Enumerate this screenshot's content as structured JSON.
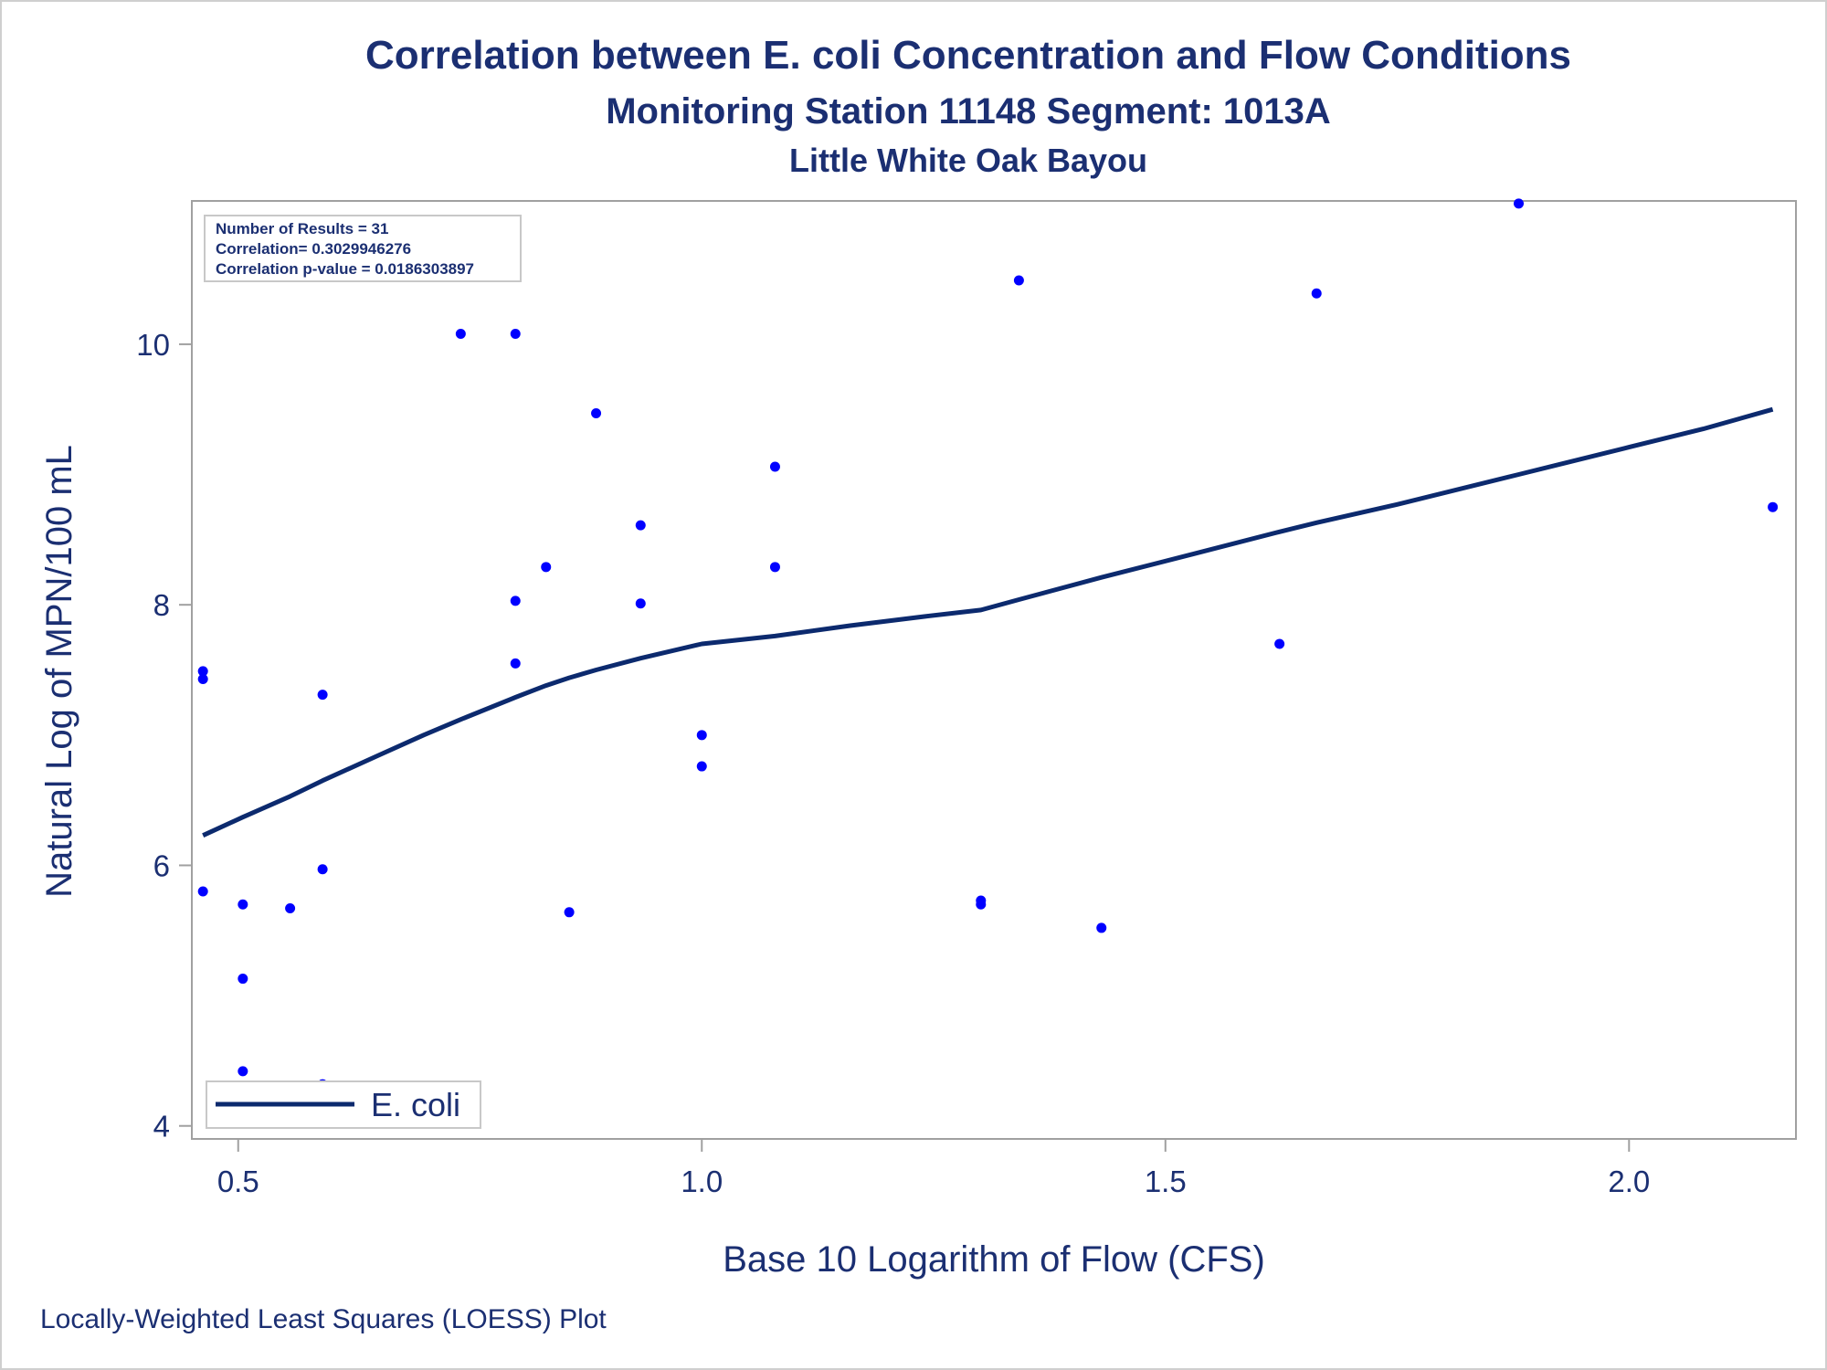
{
  "chart_data": {
    "type": "scatter",
    "title": "Correlation between E. coli Concentration and Flow Conditions",
    "subtitle": "Monitoring Station 11148 Segment: 1013A",
    "subtitle2": "Little White Oak Bayou",
    "xlabel": "Base 10 Logarithm of Flow (CFS)",
    "ylabel": "Natural Log of MPN/100 mL",
    "footnote": "Locally-Weighted Least Squares (LOESS) Plot",
    "xlim": [
      0.45,
      2.18
    ],
    "ylim": [
      3.9,
      11.1
    ],
    "x_ticks": [
      0.5,
      1.0,
      1.5,
      2.0
    ],
    "x_tick_labels": [
      "0.5",
      "1.0",
      "1.5",
      "2.0"
    ],
    "y_ticks": [
      4,
      6,
      8,
      10
    ],
    "y_tick_labels": [
      "4",
      "6",
      "8",
      "10"
    ],
    "grid": false,
    "stats": {
      "results": "Number of Results = 31",
      "correlation": "Correlation= 0.3029946276",
      "pvalue": "Correlation p-value = 0.0186303897"
    },
    "legend": {
      "label": "E. coli",
      "position": "bottom-left",
      "color": "#0c2a6e"
    },
    "point_color": "#0000ff",
    "points": [
      {
        "x": 0.462,
        "y": 7.49
      },
      {
        "x": 0.462,
        "y": 7.43
      },
      {
        "x": 0.462,
        "y": 5.8
      },
      {
        "x": 0.505,
        "y": 5.7
      },
      {
        "x": 0.505,
        "y": 5.13
      },
      {
        "x": 0.505,
        "y": 4.42
      },
      {
        "x": 0.556,
        "y": 5.67
      },
      {
        "x": 0.591,
        "y": 7.31
      },
      {
        "x": 0.591,
        "y": 5.97
      },
      {
        "x": 0.591,
        "y": 4.32
      },
      {
        "x": 0.74,
        "y": 10.08
      },
      {
        "x": 0.799,
        "y": 10.08
      },
      {
        "x": 0.799,
        "y": 8.03
      },
      {
        "x": 0.799,
        "y": 7.55
      },
      {
        "x": 0.832,
        "y": 8.29
      },
      {
        "x": 0.857,
        "y": 5.64
      },
      {
        "x": 0.886,
        "y": 9.47
      },
      {
        "x": 0.934,
        "y": 8.61
      },
      {
        "x": 0.934,
        "y": 8.01
      },
      {
        "x": 1.0,
        "y": 7.0
      },
      {
        "x": 1.0,
        "y": 6.76
      },
      {
        "x": 1.079,
        "y": 9.06
      },
      {
        "x": 1.079,
        "y": 8.29
      },
      {
        "x": 1.301,
        "y": 5.73
      },
      {
        "x": 1.301,
        "y": 5.7
      },
      {
        "x": 1.342,
        "y": 10.49
      },
      {
        "x": 1.431,
        "y": 5.52
      },
      {
        "x": 1.623,
        "y": 7.7
      },
      {
        "x": 1.663,
        "y": 10.39
      },
      {
        "x": 1.881,
        "y": 11.08
      },
      {
        "x": 2.155,
        "y": 8.75
      }
    ],
    "loess_line": [
      {
        "x": 0.462,
        "y": 6.23
      },
      {
        "x": 0.505,
        "y": 6.37
      },
      {
        "x": 0.556,
        "y": 6.53
      },
      {
        "x": 0.591,
        "y": 6.65
      },
      {
        "x": 0.65,
        "y": 6.84
      },
      {
        "x": 0.7,
        "y": 7.0
      },
      {
        "x": 0.74,
        "y": 7.12
      },
      {
        "x": 0.799,
        "y": 7.29
      },
      {
        "x": 0.832,
        "y": 7.38
      },
      {
        "x": 0.857,
        "y": 7.44
      },
      {
        "x": 0.886,
        "y": 7.5
      },
      {
        "x": 0.934,
        "y": 7.59
      },
      {
        "x": 1.0,
        "y": 7.7
      },
      {
        "x": 1.079,
        "y": 7.76
      },
      {
        "x": 1.16,
        "y": 7.84
      },
      {
        "x": 1.24,
        "y": 7.91
      },
      {
        "x": 1.301,
        "y": 7.96
      },
      {
        "x": 1.342,
        "y": 8.04
      },
      {
        "x": 1.431,
        "y": 8.21
      },
      {
        "x": 1.53,
        "y": 8.39
      },
      {
        "x": 1.623,
        "y": 8.56
      },
      {
        "x": 1.663,
        "y": 8.63
      },
      {
        "x": 1.75,
        "y": 8.77
      },
      {
        "x": 1.881,
        "y": 9.0
      },
      {
        "x": 2.0,
        "y": 9.21
      },
      {
        "x": 2.08,
        "y": 9.35
      },
      {
        "x": 2.155,
        "y": 9.5
      }
    ]
  }
}
